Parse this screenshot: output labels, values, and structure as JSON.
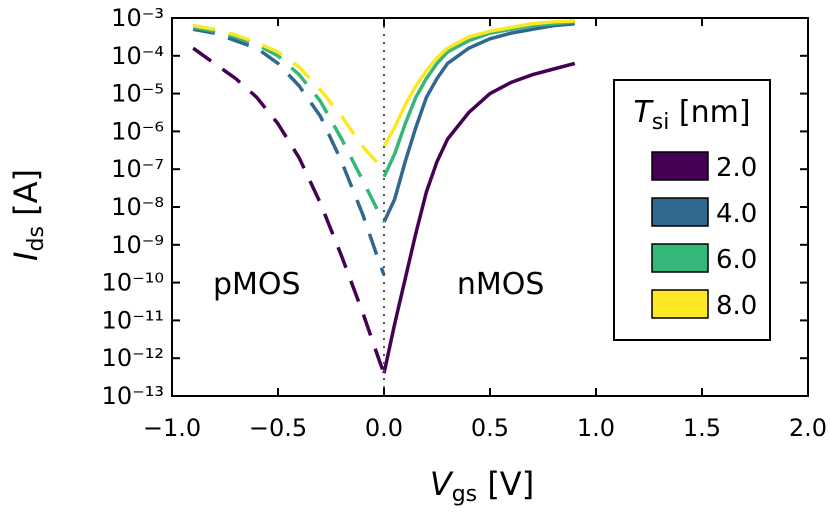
{
  "chart_data": {
    "type": "line",
    "title": "",
    "xlabel": {
      "main": "V",
      "sub": "gs",
      "unit": " [V]"
    },
    "ylabel": {
      "main": "I",
      "sub": "ds",
      "unit": " [A]"
    },
    "xlim": [
      -1.0,
      2.0
    ],
    "ylim_log10": [
      -13,
      -3
    ],
    "yscale": "log",
    "x_ticks": [
      -1.0,
      -0.5,
      0.0,
      0.5,
      1.0,
      1.5,
      2.0
    ],
    "x_tick_labels": [
      "−1.0",
      "−0.5",
      "0.0",
      "0.5",
      "1.0",
      "1.5",
      "2.0"
    ],
    "y_tick_exponents": [
      -13,
      -12,
      -11,
      -10,
      -9,
      -8,
      -7,
      -6,
      -5,
      -4,
      -3
    ],
    "y_tick_labels": [
      "10⁻¹³",
      "10⁻¹²",
      "10⁻¹¹",
      "10⁻¹⁰",
      "10⁻⁹",
      "10⁻⁸",
      "10⁻⁷",
      "10⁻⁶",
      "10⁻⁵",
      "10⁻⁴",
      "10⁻³"
    ],
    "vline_x": 0.0,
    "annotations": [
      {
        "text": "pMOS",
        "x": -0.6,
        "y_log10": -10.3
      },
      {
        "text": "nMOS",
        "x": 0.55,
        "y_log10": -10.3
      }
    ],
    "legend": {
      "title_main": "T",
      "title_sub": "si",
      "title_unit": " [nm]",
      "location": "right"
    },
    "series": [
      {
        "name": "2.0",
        "color": "#440154",
        "pmos": [
          [
            -0.9,
            -3.8
          ],
          [
            -0.8,
            -4.2
          ],
          [
            -0.7,
            -4.6
          ],
          [
            -0.6,
            -5.1
          ],
          [
            -0.5,
            -5.8
          ],
          [
            -0.4,
            -6.7
          ],
          [
            -0.3,
            -7.9
          ],
          [
            -0.2,
            -9.3
          ],
          [
            -0.1,
            -10.8
          ],
          [
            -0.02,
            -12.1
          ],
          [
            0.0,
            -12.4
          ]
        ],
        "nmos": [
          [
            0.0,
            -12.4
          ],
          [
            0.05,
            -11.1
          ],
          [
            0.1,
            -9.9
          ],
          [
            0.15,
            -8.7
          ],
          [
            0.2,
            -7.6
          ],
          [
            0.25,
            -6.8
          ],
          [
            0.3,
            -6.2
          ],
          [
            0.4,
            -5.5
          ],
          [
            0.5,
            -5.0
          ],
          [
            0.6,
            -4.7
          ],
          [
            0.7,
            -4.5
          ],
          [
            0.8,
            -4.35
          ],
          [
            0.9,
            -4.2
          ]
        ]
      },
      {
        "name": "4.0",
        "color": "#31688e",
        "pmos": [
          [
            -0.9,
            -3.3
          ],
          [
            -0.8,
            -3.4
          ],
          [
            -0.7,
            -3.6
          ],
          [
            -0.6,
            -3.8
          ],
          [
            -0.5,
            -4.2
          ],
          [
            -0.4,
            -4.8
          ],
          [
            -0.3,
            -5.6
          ],
          [
            -0.2,
            -6.8
          ],
          [
            -0.1,
            -8.2
          ],
          [
            -0.02,
            -9.5
          ],
          [
            0.0,
            -9.8
          ]
        ],
        "nmos": [
          [
            0.0,
            -8.4
          ],
          [
            0.05,
            -7.8
          ],
          [
            0.1,
            -6.8
          ],
          [
            0.15,
            -5.9
          ],
          [
            0.2,
            -5.1
          ],
          [
            0.25,
            -4.6
          ],
          [
            0.3,
            -4.2
          ],
          [
            0.4,
            -3.8
          ],
          [
            0.5,
            -3.55
          ],
          [
            0.6,
            -3.4
          ],
          [
            0.7,
            -3.3
          ],
          [
            0.8,
            -3.2
          ],
          [
            0.9,
            -3.15
          ]
        ]
      },
      {
        "name": "6.0",
        "color": "#35b779",
        "pmos": [
          [
            -0.9,
            -3.25
          ],
          [
            -0.8,
            -3.35
          ],
          [
            -0.7,
            -3.5
          ],
          [
            -0.6,
            -3.7
          ],
          [
            -0.5,
            -4.0
          ],
          [
            -0.4,
            -4.5
          ],
          [
            -0.3,
            -5.2
          ],
          [
            -0.2,
            -6.2
          ],
          [
            -0.1,
            -7.3
          ],
          [
            -0.02,
            -8.2
          ],
          [
            0.0,
            -8.4
          ]
        ],
        "nmos": [
          [
            0.0,
            -7.2
          ],
          [
            0.05,
            -6.6
          ],
          [
            0.1,
            -5.8
          ],
          [
            0.15,
            -5.1
          ],
          [
            0.2,
            -4.6
          ],
          [
            0.25,
            -4.2
          ],
          [
            0.3,
            -3.9
          ],
          [
            0.4,
            -3.6
          ],
          [
            0.5,
            -3.4
          ],
          [
            0.6,
            -3.3
          ],
          [
            0.7,
            -3.2
          ],
          [
            0.8,
            -3.15
          ],
          [
            0.9,
            -3.1
          ]
        ]
      },
      {
        "name": "8.0",
        "color": "#fde725",
        "pmos": [
          [
            -0.9,
            -3.2
          ],
          [
            -0.8,
            -3.3
          ],
          [
            -0.7,
            -3.45
          ],
          [
            -0.6,
            -3.65
          ],
          [
            -0.5,
            -3.9
          ],
          [
            -0.4,
            -4.3
          ],
          [
            -0.3,
            -4.9
          ],
          [
            -0.2,
            -5.6
          ],
          [
            -0.1,
            -6.4
          ],
          [
            -0.02,
            -6.9
          ],
          [
            0.0,
            -7.0
          ]
        ],
        "nmos": [
          [
            0.0,
            -6.4
          ],
          [
            0.05,
            -5.9
          ],
          [
            0.1,
            -5.3
          ],
          [
            0.15,
            -4.8
          ],
          [
            0.2,
            -4.4
          ],
          [
            0.25,
            -4.05
          ],
          [
            0.3,
            -3.8
          ],
          [
            0.4,
            -3.5
          ],
          [
            0.5,
            -3.35
          ],
          [
            0.6,
            -3.25
          ],
          [
            0.7,
            -3.15
          ],
          [
            0.8,
            -3.1
          ],
          [
            0.9,
            -3.08
          ]
        ]
      }
    ]
  }
}
